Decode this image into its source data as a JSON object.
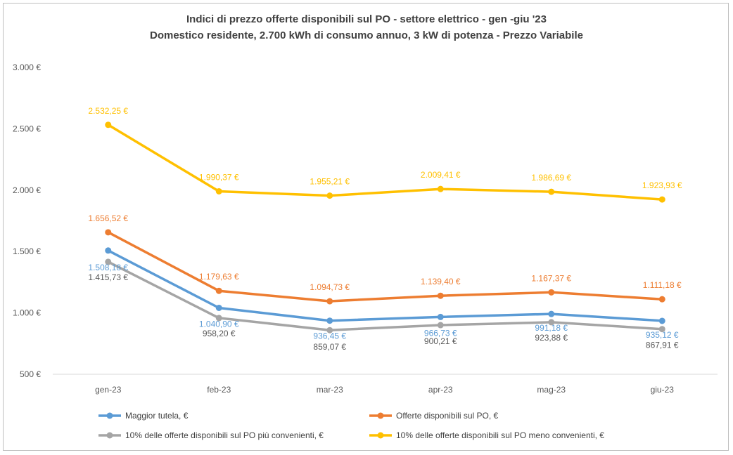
{
  "chart_data": {
    "type": "line",
    "title": "Indici di prezzo offerte disponibili sul PO - settore elettrico - gen -giu '23",
    "subtitle": "Domestico residente, 2.700 kWh di consumo annuo, 3 kW di potenza - Prezzo Variabile",
    "categories": [
      "gen-23",
      "feb-23",
      "mar-23",
      "apr-23",
      "mag-23",
      "giu-23"
    ],
    "ylim": [
      500,
      3000
    ],
    "yticks": [
      {
        "value": 500,
        "label": "500 €"
      },
      {
        "value": 1000,
        "label": "1.000 €"
      },
      {
        "value": 1500,
        "label": "1.500 €"
      },
      {
        "value": 2000,
        "label": "2.000 €"
      },
      {
        "value": 2500,
        "label": "2.500 €"
      },
      {
        "value": 3000,
        "label": "3.000 €"
      }
    ],
    "grid": false,
    "legend_position": "bottom",
    "series": [
      {
        "name": "Maggior tutela, €",
        "color": "#5B9BD5",
        "values": [
          1508.18,
          1040.9,
          936.45,
          966.73,
          991.18,
          935.12
        ],
        "labels": [
          "1.508,18 €",
          "1.040,90 €",
          "936,45 €",
          "966,73 €",
          "991,18 €",
          "935,12 €"
        ]
      },
      {
        "name": "Offerte disponibili sul PO, €",
        "color": "#ED7D31",
        "values": [
          1656.52,
          1179.63,
          1094.73,
          1139.4,
          1167.37,
          1111.18
        ],
        "labels": [
          "1.656,52 €",
          "1.179,63 €",
          "1.094,73 €",
          "1.139,40 €",
          "1.167,37 €",
          "1.111,18 €"
        ]
      },
      {
        "name": "10% delle offerte disponibili sul PO più convenienti, €",
        "color": "#A5A5A5",
        "values": [
          1415.73,
          958.2,
          859.07,
          900.21,
          923.88,
          867.91
        ],
        "labels": [
          "1.415,73 €",
          "958,20 €",
          "859,07 €",
          "900,21 €",
          "923,88 €",
          "867,91 €"
        ]
      },
      {
        "name": "10% delle offerte disponibili sul PO meno convenienti, €",
        "color": "#FFC000",
        "values": [
          2532.25,
          1990.37,
          1955.21,
          2009.41,
          1986.69,
          1923.93
        ],
        "labels": [
          "2.532,25 €",
          "1.990,37 €",
          "1.955,21 €",
          "2.009,41 €",
          "1.986,69 €",
          "1.923,93 €"
        ]
      }
    ]
  }
}
